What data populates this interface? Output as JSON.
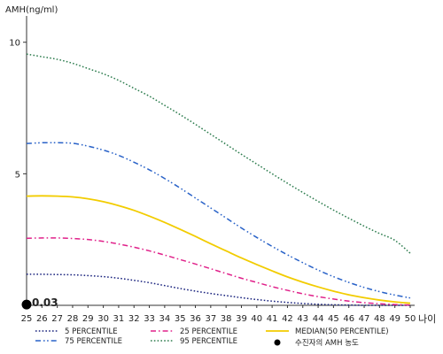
{
  "chart_data": {
    "type": "line",
    "ylabel": "AMH(ng/ml)",
    "xlabel": "나이",
    "xlim": [
      25,
      50
    ],
    "ylim": [
      0,
      11
    ],
    "x": [
      25,
      26,
      27,
      28,
      29,
      30,
      31,
      32,
      33,
      34,
      35,
      36,
      37,
      38,
      39,
      40,
      41,
      42,
      43,
      44,
      45,
      46,
      47,
      48,
      49,
      50
    ],
    "x_tick_labels": [
      "25",
      "26",
      "27",
      "28",
      "29",
      "30",
      "31",
      "32",
      "33",
      "34",
      "35",
      "36",
      "37",
      "38",
      "39",
      "40",
      "41",
      "42",
      "43",
      "44",
      "45",
      "46",
      "47",
      "48",
      "49",
      "50"
    ],
    "y_ticks": [
      5,
      10
    ],
    "y_tick_labels": [
      "5",
      "10"
    ],
    "grid": false,
    "legend_position": "bottom",
    "series": [
      {
        "name": "5 PERCENTILE",
        "color": "#1a237e",
        "dash": "dot",
        "values": [
          1.18,
          1.18,
          1.17,
          1.16,
          1.13,
          1.09,
          1.03,
          0.95,
          0.86,
          0.75,
          0.64,
          0.54,
          0.45,
          0.37,
          0.29,
          0.22,
          0.16,
          0.11,
          0.07,
          0.04,
          0.02,
          0.01,
          0.0,
          0.0,
          0.0,
          0.0
        ]
      },
      {
        "name": "25 PERCENTILE",
        "color": "#e0218a",
        "dash": "dashdot",
        "values": [
          2.55,
          2.56,
          2.56,
          2.54,
          2.5,
          2.43,
          2.33,
          2.21,
          2.07,
          1.91,
          1.74,
          1.57,
          1.39,
          1.21,
          1.03,
          0.87,
          0.71,
          0.57,
          0.44,
          0.33,
          0.24,
          0.16,
          0.1,
          0.06,
          0.03,
          0.01
        ]
      },
      {
        "name": "MEDIAN(50 PERCENTILE)",
        "color": "#f2cc00",
        "dash": "solid",
        "values": [
          4.15,
          4.16,
          4.15,
          4.12,
          4.05,
          3.94,
          3.79,
          3.61,
          3.39,
          3.15,
          2.89,
          2.62,
          2.34,
          2.07,
          1.8,
          1.55,
          1.31,
          1.08,
          0.88,
          0.7,
          0.54,
          0.4,
          0.29,
          0.2,
          0.13,
          0.08
        ]
      },
      {
        "name": "75 PERCENTILE",
        "color": "#2962c8",
        "dash": "dashdotdot",
        "values": [
          6.15,
          6.18,
          6.18,
          6.16,
          6.05,
          5.9,
          5.7,
          5.44,
          5.15,
          4.82,
          4.46,
          4.08,
          3.7,
          3.32,
          2.94,
          2.58,
          2.24,
          1.92,
          1.62,
          1.34,
          1.09,
          0.87,
          0.68,
          0.52,
          0.39,
          0.28
        ]
      },
      {
        "name": "95 PERCENTILE",
        "color": "#2e7d4f",
        "dash": "dot",
        "values": [
          9.55,
          9.45,
          9.35,
          9.2,
          9.0,
          8.8,
          8.55,
          8.25,
          7.95,
          7.6,
          7.25,
          6.88,
          6.5,
          6.12,
          5.74,
          5.37,
          5.0,
          4.64,
          4.29,
          3.95,
          3.62,
          3.31,
          3.01,
          2.73,
          2.47,
          1.98
        ]
      }
    ],
    "patient": {
      "name": "수진자의 AMH 농도",
      "x": 25,
      "y": 0.03,
      "label": "0.03",
      "color": "#000000"
    }
  }
}
